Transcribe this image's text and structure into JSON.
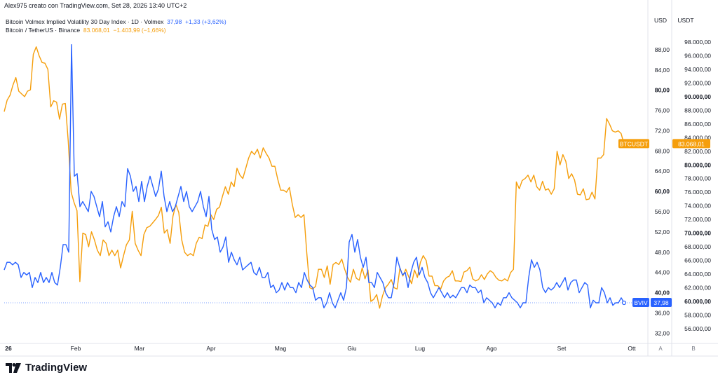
{
  "attribution": "Alex975 creato con TradingView.com, Set 28, 2026 13:40 UTC+2",
  "legend": [
    {
      "name": "Bitcoin Volmex Implied Volatility 30 Day Index · 1D · Volmex",
      "value": "37,98",
      "change": "+1,33 (+3,62%)",
      "color": "#2962ff"
    },
    {
      "name": "Bitcoin / TetherUS · Binance",
      "value": "83.068,01",
      "change": "−1.403,99 (−1,66%)",
      "color": "#f59e0b"
    }
  ],
  "logo_text": "TradingView",
  "colors": {
    "vol": "#2962ff",
    "btc": "#f59e0b",
    "grid": "#f0f3fa",
    "axis_text": "#131722"
  },
  "chart_data": {
    "type": "line",
    "x_ticks": [
      "26",
      "Feb",
      "Mar",
      "Apr",
      "Mag",
      "Giu",
      "Lug",
      "Ago",
      "Set",
      "Ott"
    ],
    "left_axis": {
      "title": "USD",
      "ticks": [
        "88,00",
        "84,00",
        "80,00",
        "76,00",
        "72,00",
        "68,00",
        "64,00",
        "60,00",
        "56,00",
        "52,00",
        "48,00",
        "44,00",
        "40,00",
        "36,00",
        "32,00"
      ],
      "bold_ticks": [
        "80,00",
        "60,00",
        "40,00"
      ],
      "range": [
        30.8,
        92.0
      ]
    },
    "right_axis": {
      "title": "USDT",
      "ticks": [
        "98.000,00",
        "96.000,00",
        "94.000,00",
        "92.000,00",
        "90.000,00",
        "88.000,00",
        "86.000,00",
        "84.000,00",
        "82.000,00",
        "80.000,00",
        "78.000,00",
        "76.000,00",
        "74.000,00",
        "72.000,00",
        "70.000,00",
        "68.000,00",
        "66.000,00",
        "64.000,00",
        "62.000,00",
        "60.000,00",
        "58.000,00",
        "56.000,00"
      ],
      "bold_ticks": [
        "90.000,00",
        "80.000,00",
        "70.000,00",
        "60.000,00"
      ],
      "range": [
        54450,
        99850
      ]
    },
    "corner_labels": [
      "A",
      "B"
    ],
    "series": [
      {
        "name": "BVIV",
        "axis": "left",
        "last_label": "37,98",
        "values": [
          44.5,
          46,
          46,
          45.5,
          46,
          45.5,
          43,
          44,
          43.5,
          44,
          41,
          43,
          42,
          44,
          42,
          43,
          42,
          44,
          42,
          41.5,
          45,
          49.5,
          49.5,
          48,
          89,
          63,
          63.5,
          57,
          58,
          57,
          56,
          60,
          59,
          57,
          55,
          58,
          53,
          54,
          52,
          55,
          57,
          55,
          58,
          57,
          64.5,
          63,
          60,
          61,
          58,
          62,
          58,
          61,
          63,
          61,
          59,
          60.5,
          64,
          59,
          56,
          58,
          56,
          57,
          59,
          61,
          58,
          60,
          57,
          56,
          57,
          58,
          60,
          57,
          55,
          59,
          52.5,
          50.5,
          51,
          48,
          49,
          51,
          46,
          48,
          46.5,
          45.5,
          47,
          44.5,
          45,
          45.5,
          46,
          44,
          43.5,
          45,
          43,
          43,
          44,
          41,
          41.5,
          40,
          40.5,
          42,
          40.5,
          42,
          41,
          41,
          40,
          42,
          41,
          44,
          42.5,
          41.5,
          41,
          38.5,
          39,
          39,
          37,
          38,
          40,
          38,
          37,
          38.5,
          40,
          38.5,
          41,
          50,
          51.5,
          48,
          50.5,
          47,
          45,
          47,
          42,
          42,
          41,
          44,
          43,
          42,
          40,
          39,
          39,
          42,
          47,
          45,
          43.5,
          44,
          41,
          44,
          46,
          47,
          43.5,
          45,
          43,
          42,
          40,
          39,
          40,
          41,
          40,
          39,
          40,
          39,
          39.5,
          39,
          40,
          41,
          41,
          40,
          41.5,
          41,
          41,
          40,
          40.5,
          38,
          39,
          38.5,
          38,
          37,
          38,
          37.5,
          39,
          39,
          40,
          39,
          38.5,
          38,
          37,
          38,
          38,
          43,
          46.5,
          45,
          46,
          44.5,
          41,
          40,
          41,
          40.5,
          41,
          42,
          41,
          42,
          43,
          40.5,
          42,
          42.5,
          42.5,
          40,
          41,
          42,
          41.5,
          37,
          38.5,
          38,
          38,
          41,
          40,
          38,
          39,
          37.5,
          38,
          38,
          39,
          38
        ]
      },
      {
        "name": "BTCUSDT",
        "axis": "right",
        "last_label": "83.068,01",
        "values": [
          87800,
          89500,
          90200,
          91700,
          92800,
          90800,
          90400,
          90000,
          90800,
          91000,
          96200,
          97300,
          96000,
          95000,
          94900,
          94000,
          88500,
          89400,
          89200,
          86700,
          88900,
          89000,
          83500,
          76000,
          74500,
          73300,
          62900,
          70000,
          69800,
          68000,
          70200,
          69000,
          67500,
          66700,
          69000,
          68500,
          66700,
          67500,
          66700,
          67500,
          64900,
          66700,
          68300,
          69000,
          73200,
          68500,
          67500,
          66700,
          69800,
          70800,
          71000,
          71500,
          72000,
          72600,
          73800,
          70000,
          70500,
          68500,
          72500,
          74200,
          73000,
          69000,
          67200,
          66700,
          67000,
          66700,
          68500,
          69400,
          69200,
          71200,
          71000,
          72700,
          72000,
          73500,
          73800,
          75400,
          76800,
          75700,
          77500,
          76800,
          79500,
          78500,
          78000,
          79500,
          81000,
          82000,
          81500,
          82300,
          81000,
          82500,
          81700,
          81000,
          79800,
          79800,
          77900,
          76300,
          76300,
          76000,
          76700,
          74200,
          72300,
          72700,
          72300,
          72700,
          67000,
          62000,
          61800,
          62200,
          64700,
          64700,
          63500,
          65200,
          62500,
          65400,
          65700,
          65400,
          66200,
          64700,
          63500,
          62800,
          64700,
          63400,
          63100,
          64900,
          63300,
          64600,
          60000,
          60300,
          61000,
          59000,
          60800,
          62000,
          62500,
          63200,
          62000,
          61800,
          64900,
          63700,
          64700,
          63600,
          62600,
          64600,
          63500,
          65700,
          66700,
          66000,
          63700,
          63700,
          62300,
          62300,
          61800,
          63000,
          63500,
          63700,
          64500,
          63000,
          63000,
          62900,
          64300,
          64500,
          65000,
          63300,
          63000,
          63200,
          63900,
          63200,
          64000,
          64500,
          64200,
          63500,
          63100,
          63000,
          63300,
          63000,
          64200,
          64700,
          77500,
          76500,
          77700,
          78000,
          78500,
          77500,
          78500,
          76800,
          76300,
          77600,
          76300,
          76500,
          75700,
          76500,
          82000,
          80000,
          81500,
          80500,
          78000,
          78700,
          77800,
          75700,
          75600,
          76500,
          74900,
          75000,
          76000,
          75000,
          81000,
          81000,
          81500,
          86800,
          86000,
          85000,
          84800,
          85000,
          84600,
          83068
        ]
      }
    ]
  }
}
